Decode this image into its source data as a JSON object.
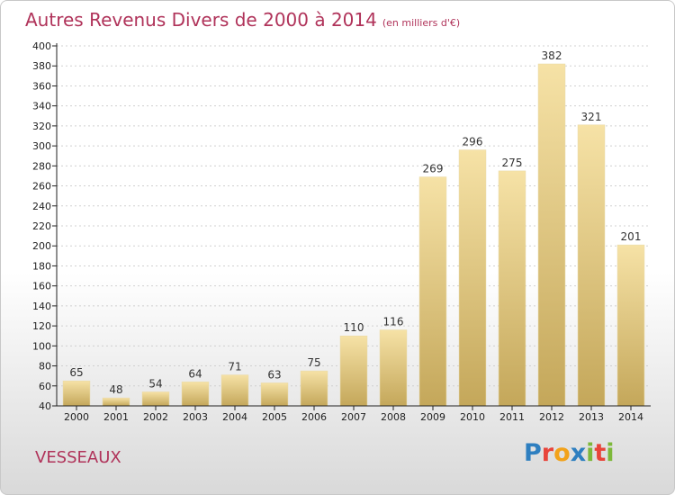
{
  "header": {
    "title": "Autres Revenus Divers de 2000 à 2014",
    "unit": "(en milliers d'€)"
  },
  "footer": {
    "commune": "VESSEAUX",
    "logo_letters": [
      "P",
      "r",
      "o",
      "x",
      "i",
      "t",
      "i"
    ],
    "logo_colors": [
      "#2e7fc0",
      "#e8443a",
      "#f2a21a",
      "#2e7fc0",
      "#7db83a",
      "#e8443a",
      "#7db83a"
    ]
  },
  "colors": {
    "title": "#b0335a",
    "bar_top": "#f6e2a6",
    "bar_bottom": "#c4a75a",
    "axis": "#222222",
    "grid": "#d0d0d0"
  },
  "chart_data": {
    "type": "bar",
    "categories": [
      "2000",
      "2001",
      "2002",
      "2003",
      "2004",
      "2005",
      "2006",
      "2007",
      "2008",
      "2009",
      "2010",
      "2011",
      "2012",
      "2013",
      "2014"
    ],
    "values": [
      65,
      48,
      54,
      64,
      71,
      63,
      75,
      110,
      116,
      269,
      296,
      275,
      382,
      321,
      201
    ],
    "ylim": [
      40,
      400
    ],
    "ytick_step": 20,
    "grid": true
  }
}
